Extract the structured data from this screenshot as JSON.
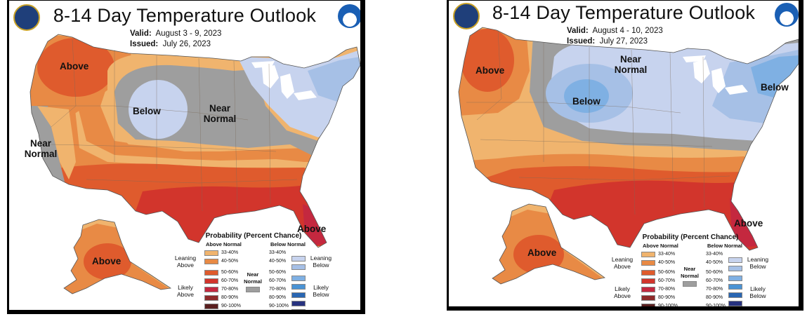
{
  "maps": [
    {
      "title": "8-14 Day Temperature Outlook",
      "valid_label": "Valid:",
      "valid_value": "August 3 - 9, 2023",
      "issued_label": "Issued:",
      "issued_value": "July 26, 2023",
      "regions": [
        "Above",
        "Below",
        "Near Normal",
        "Near Normal",
        "Above",
        "Above"
      ]
    },
    {
      "title": "8-14 Day Temperature Outlook",
      "valid_label": "Valid:",
      "valid_value": "August 4 - 10, 2023",
      "issued_label": "Issued:",
      "issued_value": "July 27, 2023",
      "regions": [
        "Above",
        "Near Normal",
        "Below",
        "Below",
        "Above",
        "Above"
      ]
    }
  ],
  "legend": {
    "title": "Probability (Percent Chance)",
    "above_header": "Above Normal",
    "below_header": "Below Normal",
    "leaning_above": "Leaning Above",
    "likely_above": "Likely Above",
    "leaning_below": "Leaning Below",
    "likely_below": "Likely Below",
    "near_normal": "Near Normal",
    "ranges": [
      "33-40%",
      "40-50%",
      "50-60%",
      "60-70%",
      "70-80%",
      "80-90%",
      "90-100%"
    ],
    "above_colors": [
      "#f0b46e",
      "#e88a45",
      "#df5b2d",
      "#d2352c",
      "#c4283f",
      "#8e2a2a",
      "#5a1f1f"
    ],
    "below_colors": [
      "#c7d3ee",
      "#a6c0e6",
      "#7fb0e3",
      "#4a93d4",
      "#2966b2",
      "#27327f",
      "#1c1653"
    ],
    "near_color": "#9e9e9e"
  },
  "colors": {
    "leaning_above": "#f0b46e",
    "above_40": "#e88a45",
    "above_50": "#df5b2d",
    "above_60": "#d2352c",
    "above_70": "#c4283f",
    "near": "#9e9e9e",
    "below_33": "#c7d3ee",
    "below_40": "#a6c0e6",
    "below_50": "#7fb0e3",
    "lakes": "#ffffff"
  }
}
